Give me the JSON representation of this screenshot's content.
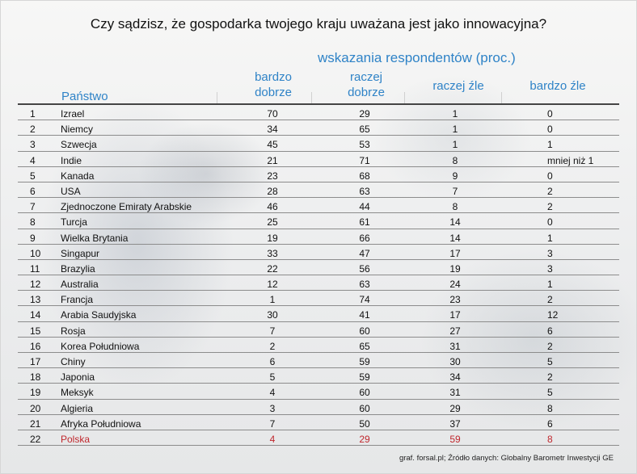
{
  "title": "Czy sądzisz, że gospodarka twojego kraju uważana jest jako innowacyjna?",
  "subtitle": "wskazania respondentów (proc.)",
  "source": "graf. forsal.pl; Źródło danych: Globalny Barometr Inwestycji GE",
  "colors": {
    "accent": "#2f83c7",
    "highlight": "#c0272d",
    "rule": "#444444"
  },
  "chart_data": {
    "type": "table",
    "title": "Czy sądzisz, że gospodarka twojego kraju uważana jest jako innowacyjna?",
    "columns": [
      "Państwo",
      "bardzo dobrze",
      "raczej dobrze",
      "raczej źle",
      "bardzo źle"
    ],
    "headers": {
      "country": "Państwo",
      "b_dobrze_1": "bardzo",
      "b_dobrze_2": "dobrze",
      "r_dobrze_1": "raczej",
      "r_dobrze_2": "dobrze",
      "r_zle": "raczej źle",
      "b_zle": "bardzo źle"
    },
    "highlight_row": 22,
    "rows": [
      {
        "num": "1",
        "country": "Izrael",
        "bd": "70",
        "rd": "29",
        "rz": "1",
        "bz": "0"
      },
      {
        "num": "2",
        "country": "Niemcy",
        "bd": "34",
        "rd": "65",
        "rz": "1",
        "bz": "0"
      },
      {
        "num": "3",
        "country": "Szwecja",
        "bd": "45",
        "rd": "53",
        "rz": "1",
        "bz": "1"
      },
      {
        "num": "4",
        "country": "Indie",
        "bd": "21",
        "rd": "71",
        "rz": "8",
        "bz": "mniej niż 1"
      },
      {
        "num": "5",
        "country": "Kanada",
        "bd": "23",
        "rd": "68",
        "rz": "9",
        "bz": "0"
      },
      {
        "num": "6",
        "country": "USA",
        "bd": "28",
        "rd": "63",
        "rz": "7",
        "bz": "2"
      },
      {
        "num": "7",
        "country": "Zjednoczone Emiraty Arabskie",
        "bd": "46",
        "rd": "44",
        "rz": "8",
        "bz": "2"
      },
      {
        "num": "8",
        "country": "Turcja",
        "bd": "25",
        "rd": "61",
        "rz": "14",
        "bz": "0"
      },
      {
        "num": "9",
        "country": "Wielka Brytania",
        "bd": "19",
        "rd": "66",
        "rz": "14",
        "bz": "1"
      },
      {
        "num": "10",
        "country": "Singapur",
        "bd": "33",
        "rd": "47",
        "rz": "17",
        "bz": "3"
      },
      {
        "num": "11",
        "country": "Brazylia",
        "bd": "22",
        "rd": "56",
        "rz": "19",
        "bz": "3"
      },
      {
        "num": "12",
        "country": "Australia",
        "bd": "12",
        "rd": "63",
        "rz": "24",
        "bz": "1"
      },
      {
        "num": "13",
        "country": "Francja",
        "bd": "1",
        "rd": "74",
        "rz": "23",
        "bz": "2"
      },
      {
        "num": "14",
        "country": "Arabia Saudyjska",
        "bd": "30",
        "rd": "41",
        "rz": "17",
        "bz": "12"
      },
      {
        "num": "15",
        "country": "Rosja",
        "bd": "7",
        "rd": "60",
        "rz": "27",
        "bz": "6"
      },
      {
        "num": "16",
        "country": "Korea Południowa",
        "bd": "2",
        "rd": "65",
        "rz": "31",
        "bz": "2"
      },
      {
        "num": "17",
        "country": "Chiny",
        "bd": "6",
        "rd": "59",
        "rz": "30",
        "bz": "5"
      },
      {
        "num": "18",
        "country": "Japonia",
        "bd": "5",
        "rd": "59",
        "rz": "34",
        "bz": "2"
      },
      {
        "num": "19",
        "country": "Meksyk",
        "bd": "4",
        "rd": "60",
        "rz": "31",
        "bz": "5"
      },
      {
        "num": "20",
        "country": "Algieria",
        "bd": "3",
        "rd": "60",
        "rz": "29",
        "bz": "8"
      },
      {
        "num": "21",
        "country": "Afryka Południowa",
        "bd": "7",
        "rd": "50",
        "rz": "37",
        "bz": "6"
      },
      {
        "num": "22",
        "country": "Polska",
        "bd": "4",
        "rd": "29",
        "rz": "59",
        "bz": "8"
      }
    ]
  }
}
